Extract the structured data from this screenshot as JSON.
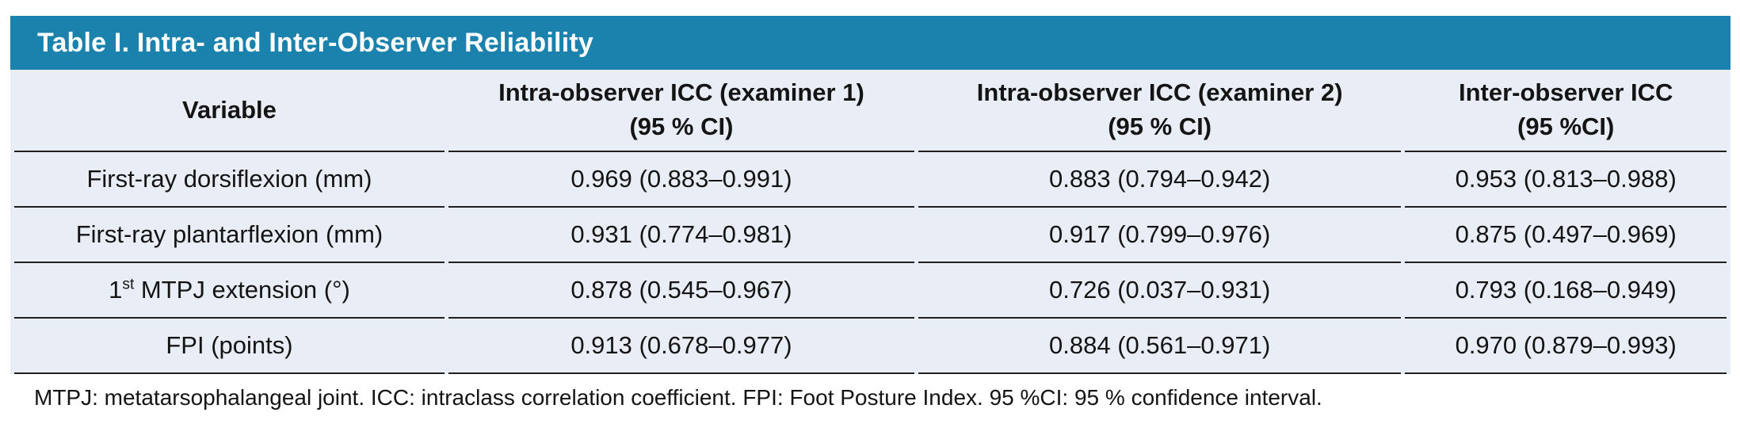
{
  "colors": {
    "accent_header_bar": "#1a82ad",
    "table_body_background": "#e9eef6",
    "rule_line": "#1f1f1f",
    "title_text": "#ffffff",
    "body_text": "#141414"
  },
  "table": {
    "title": "Table I. Intra- and Inter-Observer Reliability",
    "columns": [
      {
        "line1": "Variable",
        "line2": ""
      },
      {
        "line1": "Intra-observer ICC (examiner 1)",
        "line2": "(95 % CI)"
      },
      {
        "line1": "Intra-observer ICC (examiner 2)",
        "line2": "(95 % CI)"
      },
      {
        "line1": "Inter-observer ICC",
        "line2": "(95 %CI)"
      }
    ],
    "rows": [
      {
        "variable": "First-ray dorsiflexion (mm)",
        "icc_examiner1": "0.969 (0.883–0.991)",
        "icc_examiner2": "0.883 (0.794–0.942)",
        "inter_observer": "0.953 (0.813–0.988)"
      },
      {
        "variable": "First-ray plantarflexion (mm)",
        "icc_examiner1": "0.931 (0.774–0.981)",
        "icc_examiner2": "0.917 (0.799–0.976)",
        "inter_observer": "0.875 (0.497–0.969)"
      },
      {
        "variable_prefix": "1",
        "variable_superscript": "st",
        "variable_rest": " MTPJ extension (°)",
        "icc_examiner1": "0.878 (0.545–0.967)",
        "icc_examiner2": "0.726 (0.037–0.931)",
        "inter_observer": "0.793 (0.168–0.949)"
      },
      {
        "variable": "FPI (points)",
        "icc_examiner1": "0.913 (0.678–0.977)",
        "icc_examiner2": "0.884 (0.561–0.971)",
        "inter_observer": "0.970 (0.879–0.993)"
      }
    ],
    "footnote": "MTPJ: metatarsophalangeal joint. ICC: intraclass correlation coefficient. FPI: Foot Posture Index. 95 %CI: 95 % confidence interval."
  }
}
